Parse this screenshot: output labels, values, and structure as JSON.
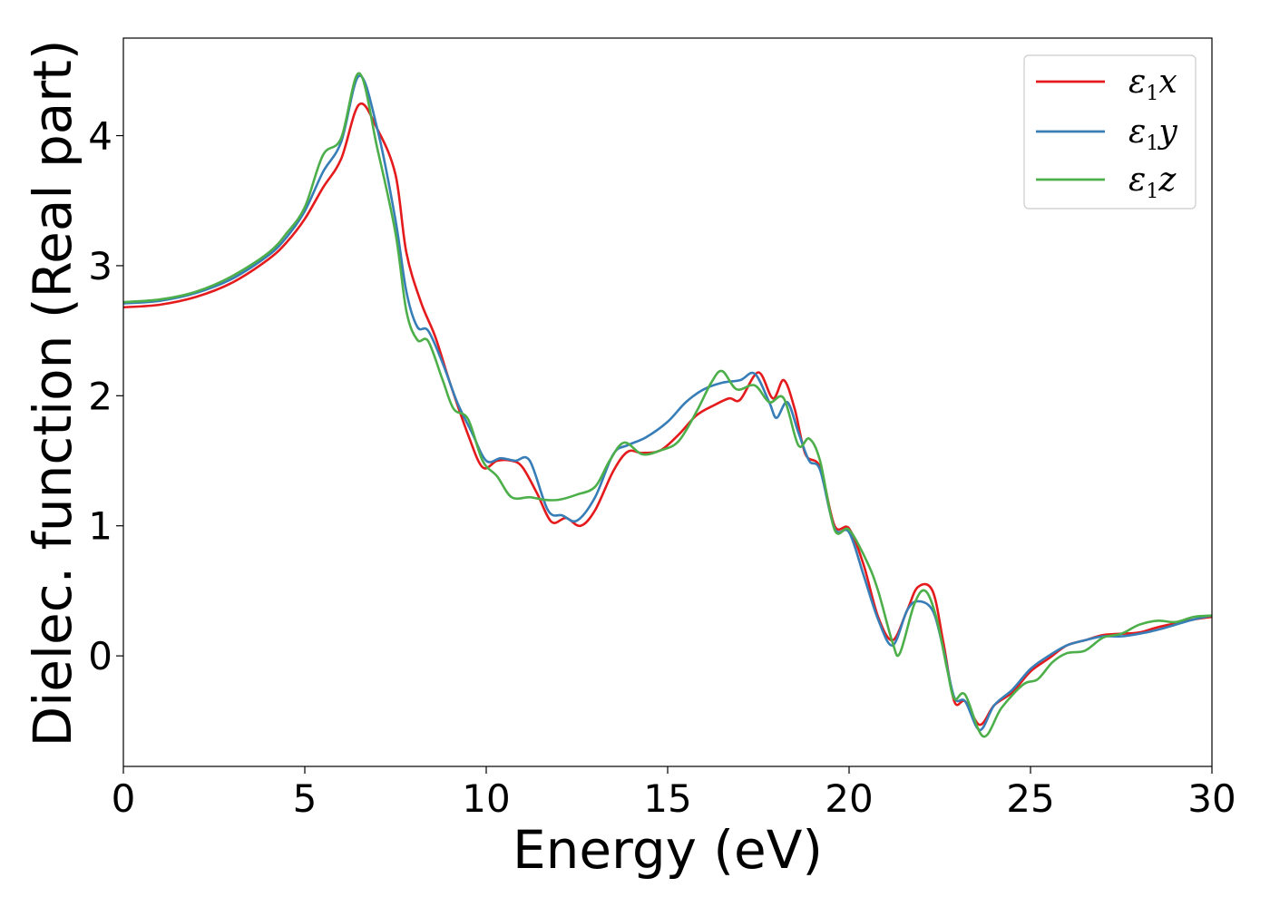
{
  "chart_data": {
    "type": "line",
    "xlabel": "Energy (eV)",
    "ylabel": "Dielec. function (Real part)",
    "xlim": [
      0,
      30
    ],
    "ylim": [
      -0.85,
      4.75
    ],
    "xticks": [
      0,
      5,
      10,
      15,
      20,
      25,
      30
    ],
    "yticks": [
      0,
      1,
      2,
      3,
      4
    ],
    "grid": false,
    "legend_position": "top-right",
    "series": [
      {
        "name": "ε1x",
        "label_main": "ε",
        "label_sub": "1",
        "label_tail": "x",
        "color": "#e41a1c",
        "points": [
          [
            0,
            2.68
          ],
          [
            1,
            2.7
          ],
          [
            2,
            2.76
          ],
          [
            3,
            2.87
          ],
          [
            4,
            3.05
          ],
          [
            4.5,
            3.18
          ],
          [
            5,
            3.36
          ],
          [
            5.5,
            3.6
          ],
          [
            6,
            3.82
          ],
          [
            6.5,
            4.24
          ],
          [
            7,
            4.05
          ],
          [
            7.5,
            3.7
          ],
          [
            7.8,
            3.1
          ],
          [
            8.2,
            2.72
          ],
          [
            8.6,
            2.45
          ],
          [
            9,
            2.1
          ],
          [
            9.5,
            1.7
          ],
          [
            9.9,
            1.45
          ],
          [
            10.3,
            1.5
          ],
          [
            10.7,
            1.5
          ],
          [
            11,
            1.45
          ],
          [
            11.4,
            1.25
          ],
          [
            11.8,
            1.03
          ],
          [
            12.2,
            1.06
          ],
          [
            12.6,
            1.0
          ],
          [
            13,
            1.12
          ],
          [
            13.5,
            1.42
          ],
          [
            13.9,
            1.57
          ],
          [
            14.3,
            1.56
          ],
          [
            14.8,
            1.58
          ],
          [
            15.3,
            1.7
          ],
          [
            15.8,
            1.85
          ],
          [
            16.3,
            1.93
          ],
          [
            16.7,
            1.98
          ],
          [
            17,
            1.97
          ],
          [
            17.5,
            2.18
          ],
          [
            17.9,
            1.98
          ],
          [
            18.2,
            2.12
          ],
          [
            18.5,
            1.9
          ],
          [
            18.8,
            1.55
          ],
          [
            19.2,
            1.45
          ],
          [
            19.6,
            1.0
          ],
          [
            20,
            0.98
          ],
          [
            20.4,
            0.7
          ],
          [
            20.8,
            0.3
          ],
          [
            21.2,
            0.12
          ],
          [
            21.6,
            0.35
          ],
          [
            21.9,
            0.53
          ],
          [
            22.3,
            0.5
          ],
          [
            22.6,
            0.1
          ],
          [
            22.9,
            -0.35
          ],
          [
            23.2,
            -0.35
          ],
          [
            23.6,
            -0.53
          ],
          [
            24,
            -0.38
          ],
          [
            24.5,
            -0.28
          ],
          [
            25,
            -0.12
          ],
          [
            25.5,
            -0.02
          ],
          [
            26,
            0.08
          ],
          [
            26.5,
            0.12
          ],
          [
            27,
            0.16
          ],
          [
            27.5,
            0.17
          ],
          [
            28,
            0.18
          ],
          [
            28.5,
            0.22
          ],
          [
            29,
            0.25
          ],
          [
            29.5,
            0.28
          ],
          [
            30,
            0.3
          ]
        ]
      },
      {
        "name": "ε1y",
        "label_main": "ε",
        "label_sub": "1",
        "label_tail": "y",
        "color": "#377eb8",
        "points": [
          [
            0,
            2.71
          ],
          [
            1,
            2.73
          ],
          [
            2,
            2.79
          ],
          [
            3,
            2.9
          ],
          [
            4,
            3.08
          ],
          [
            4.5,
            3.22
          ],
          [
            5,
            3.42
          ],
          [
            5.5,
            3.72
          ],
          [
            6,
            3.95
          ],
          [
            6.5,
            4.46
          ],
          [
            7,
            4.05
          ],
          [
            7.5,
            3.35
          ],
          [
            7.8,
            2.8
          ],
          [
            8.1,
            2.53
          ],
          [
            8.4,
            2.5
          ],
          [
            8.8,
            2.25
          ],
          [
            9.2,
            1.95
          ],
          [
            9.6,
            1.72
          ],
          [
            10,
            1.5
          ],
          [
            10.4,
            1.52
          ],
          [
            10.8,
            1.5
          ],
          [
            11.2,
            1.5
          ],
          [
            11.7,
            1.12
          ],
          [
            12.1,
            1.08
          ],
          [
            12.5,
            1.04
          ],
          [
            13,
            1.22
          ],
          [
            13.5,
            1.55
          ],
          [
            13.9,
            1.62
          ],
          [
            14.4,
            1.68
          ],
          [
            15,
            1.8
          ],
          [
            15.5,
            1.95
          ],
          [
            16,
            2.05
          ],
          [
            16.5,
            2.1
          ],
          [
            17,
            2.12
          ],
          [
            17.4,
            2.17
          ],
          [
            17.8,
            1.95
          ],
          [
            18,
            1.83
          ],
          [
            18.3,
            1.95
          ],
          [
            18.6,
            1.72
          ],
          [
            18.9,
            1.5
          ],
          [
            19.2,
            1.43
          ],
          [
            19.6,
            0.98
          ],
          [
            20,
            0.95
          ],
          [
            20.4,
            0.62
          ],
          [
            20.8,
            0.28
          ],
          [
            21.2,
            0.08
          ],
          [
            21.6,
            0.35
          ],
          [
            21.9,
            0.42
          ],
          [
            22.3,
            0.35
          ],
          [
            22.6,
            0.05
          ],
          [
            22.9,
            -0.32
          ],
          [
            23.2,
            -0.35
          ],
          [
            23.6,
            -0.57
          ],
          [
            24,
            -0.38
          ],
          [
            24.5,
            -0.26
          ],
          [
            25,
            -0.1
          ],
          [
            25.5,
            0.0
          ],
          [
            26,
            0.08
          ],
          [
            26.5,
            0.12
          ],
          [
            27,
            0.15
          ],
          [
            27.5,
            0.15
          ],
          [
            28,
            0.17
          ],
          [
            28.5,
            0.2
          ],
          [
            29,
            0.24
          ],
          [
            29.5,
            0.28
          ],
          [
            30,
            0.31
          ]
        ]
      },
      {
        "name": "ε1z",
        "label_main": "ε",
        "label_sub": "1",
        "label_tail": "z",
        "color": "#4daf4a",
        "points": [
          [
            0,
            2.72
          ],
          [
            1,
            2.74
          ],
          [
            2,
            2.8
          ],
          [
            3,
            2.92
          ],
          [
            4,
            3.1
          ],
          [
            4.5,
            3.25
          ],
          [
            5,
            3.45
          ],
          [
            5.5,
            3.85
          ],
          [
            6,
            3.98
          ],
          [
            6.5,
            4.48
          ],
          [
            7,
            3.9
          ],
          [
            7.5,
            3.25
          ],
          [
            7.8,
            2.65
          ],
          [
            8.1,
            2.43
          ],
          [
            8.4,
            2.42
          ],
          [
            8.8,
            2.12
          ],
          [
            9.1,
            1.9
          ],
          [
            9.5,
            1.82
          ],
          [
            9.9,
            1.5
          ],
          [
            10.3,
            1.38
          ],
          [
            10.7,
            1.22
          ],
          [
            11.2,
            1.22
          ],
          [
            11.6,
            1.2
          ],
          [
            12,
            1.2
          ],
          [
            12.5,
            1.24
          ],
          [
            13,
            1.3
          ],
          [
            13.4,
            1.5
          ],
          [
            13.8,
            1.64
          ],
          [
            14.3,
            1.55
          ],
          [
            14.8,
            1.58
          ],
          [
            15.3,
            1.65
          ],
          [
            15.8,
            1.88
          ],
          [
            16.2,
            2.1
          ],
          [
            16.5,
            2.19
          ],
          [
            16.9,
            2.05
          ],
          [
            17.4,
            2.08
          ],
          [
            17.8,
            1.95
          ],
          [
            18.2,
            1.98
          ],
          [
            18.6,
            1.62
          ],
          [
            18.9,
            1.67
          ],
          [
            19.2,
            1.5
          ],
          [
            19.6,
            0.97
          ],
          [
            20,
            0.97
          ],
          [
            20.5,
            0.72
          ],
          [
            20.8,
            0.5
          ],
          [
            21.2,
            0.1
          ],
          [
            21.4,
            0.02
          ],
          [
            21.8,
            0.4
          ],
          [
            22.1,
            0.5
          ],
          [
            22.4,
            0.3
          ],
          [
            22.7,
            -0.1
          ],
          [
            22.9,
            -0.33
          ],
          [
            23.2,
            -0.3
          ],
          [
            23.7,
            -0.62
          ],
          [
            24.2,
            -0.4
          ],
          [
            24.8,
            -0.22
          ],
          [
            25.2,
            -0.18
          ],
          [
            25.6,
            -0.05
          ],
          [
            26,
            0.02
          ],
          [
            26.5,
            0.04
          ],
          [
            27,
            0.14
          ],
          [
            27.5,
            0.17
          ],
          [
            28,
            0.24
          ],
          [
            28.5,
            0.27
          ],
          [
            29,
            0.26
          ],
          [
            29.5,
            0.3
          ],
          [
            30,
            0.31
          ]
        ]
      }
    ]
  }
}
